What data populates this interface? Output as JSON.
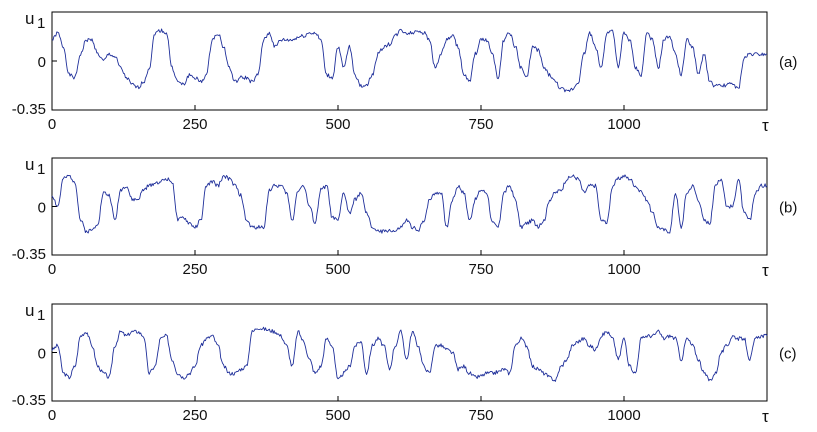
{
  "chart_data": [
    {
      "type": "line",
      "panel_label": "(a)",
      "ylabel": "u",
      "ylabel_subscript": "1",
      "xlabel": "τ",
      "xlim": [
        0,
        1250
      ],
      "ylim": [
        -0.35,
        0.35
      ],
      "x_ticks": [
        0,
        250,
        500,
        750,
        1000
      ],
      "x_tick_labels": [
        "0",
        "250",
        "500",
        "750",
        "1000"
      ],
      "y_tick_labels": [
        "0",
        "-0.35"
      ],
      "line_color": "#1f2f9a",
      "series": [
        {
          "x": [
            0,
            10,
            20,
            30,
            40,
            50,
            60,
            70,
            80,
            90,
            100,
            110,
            120,
            130,
            140,
            150,
            160,
            170,
            180,
            190,
            200,
            210,
            220,
            230,
            240,
            250,
            260,
            270,
            280,
            290,
            300,
            310,
            320,
            330,
            340,
            350,
            360,
            370,
            380,
            390,
            400,
            410,
            420,
            430,
            440,
            450,
            460,
            470,
            480,
            490,
            500,
            510,
            520,
            530,
            540,
            550,
            560,
            570,
            580,
            590,
            600,
            610,
            620,
            630,
            640,
            650,
            660,
            670,
            680,
            690,
            700,
            710,
            720,
            730,
            740,
            750,
            760,
            770,
            780,
            790,
            800,
            810,
            820,
            830,
            840,
            850,
            860,
            870,
            880,
            890,
            900,
            910,
            920,
            930,
            940,
            950,
            960,
            970,
            980,
            990,
            1000,
            1010,
            1020,
            1030,
            1040,
            1050,
            1060,
            1070,
            1080,
            1090,
            1100,
            1110,
            1120,
            1130,
            1140,
            1150,
            1160,
            1170,
            1180,
            1190,
            1200,
            1210,
            1220,
            1230,
            1240,
            1250
          ],
          "y": [
            0.15,
            0.2,
            0.1,
            -0.1,
            -0.12,
            0.05,
            0.15,
            0.15,
            0.05,
            0.0,
            0.05,
            0.03,
            -0.05,
            -0.12,
            -0.17,
            -0.19,
            -0.15,
            -0.05,
            0.2,
            0.22,
            0.2,
            -0.05,
            -0.15,
            -0.17,
            -0.1,
            -0.12,
            -0.15,
            -0.1,
            0.15,
            0.2,
            0.1,
            -0.05,
            -0.15,
            -0.12,
            -0.12,
            -0.15,
            -0.1,
            0.15,
            0.2,
            0.1,
            0.15,
            0.15,
            0.15,
            0.17,
            0.18,
            0.2,
            0.2,
            0.15,
            -0.1,
            -0.12,
            0.1,
            -0.05,
            0.1,
            -0.1,
            -0.18,
            -0.17,
            -0.1,
            0.05,
            0.1,
            0.12,
            0.18,
            0.22,
            0.2,
            0.2,
            0.22,
            0.2,
            0.15,
            -0.05,
            0.05,
            0.15,
            0.18,
            0.1,
            -0.1,
            -0.15,
            0.05,
            0.15,
            0.15,
            0.05,
            -0.12,
            0.15,
            0.2,
            0.1,
            -0.05,
            -0.12,
            0.1,
            0.08,
            -0.05,
            -0.1,
            -0.15,
            -0.2,
            -0.22,
            -0.2,
            -0.15,
            0.05,
            0.2,
            0.1,
            -0.05,
            0.2,
            0.22,
            -0.05,
            0.2,
            0.15,
            -0.05,
            -0.1,
            0.2,
            0.15,
            -0.05,
            0.15,
            0.18,
            0.05,
            -0.1,
            0.15,
            0.1,
            -0.1,
            0.05,
            -0.15,
            -0.18,
            -0.18,
            -0.17,
            -0.16,
            -0.2,
            0.02,
            0.05,
            0.05,
            0.05,
            0.05
          ]
        }
      ]
    },
    {
      "type": "line",
      "panel_label": "(b)",
      "ylabel": "u",
      "ylabel_subscript": "1",
      "xlabel": "τ",
      "xlim": [
        0,
        1250
      ],
      "ylim": [
        -0.35,
        0.35
      ],
      "x_ticks": [
        0,
        250,
        500,
        750,
        1000
      ],
      "x_tick_labels": [
        "0",
        "250",
        "500",
        "750",
        "1000"
      ],
      "y_tick_labels": [
        "0",
        "-0.35"
      ],
      "line_color": "#1f2f9a",
      "series": [
        {
          "x": [
            0,
            10,
            20,
            30,
            40,
            50,
            60,
            70,
            80,
            90,
            100,
            110,
            120,
            130,
            140,
            150,
            160,
            170,
            180,
            190,
            200,
            210,
            220,
            230,
            240,
            250,
            260,
            270,
            280,
            290,
            300,
            310,
            320,
            330,
            340,
            350,
            360,
            370,
            380,
            390,
            400,
            410,
            420,
            430,
            440,
            450,
            460,
            470,
            480,
            490,
            500,
            510,
            520,
            530,
            540,
            550,
            560,
            570,
            580,
            590,
            600,
            610,
            620,
            630,
            640,
            650,
            660,
            670,
            680,
            690,
            700,
            710,
            720,
            730,
            740,
            750,
            760,
            770,
            780,
            790,
            800,
            810,
            820,
            830,
            840,
            850,
            860,
            870,
            880,
            890,
            900,
            910,
            920,
            930,
            940,
            950,
            960,
            970,
            980,
            990,
            1000,
            1010,
            1020,
            1030,
            1040,
            1050,
            1060,
            1070,
            1080,
            1090,
            1100,
            1110,
            1120,
            1130,
            1140,
            1150,
            1160,
            1170,
            1180,
            1190,
            1200,
            1210,
            1220,
            1230,
            1240,
            1250
          ],
          "y": [
            0.08,
            0.0,
            0.2,
            0.22,
            0.18,
            -0.1,
            -0.18,
            -0.17,
            -0.12,
            0.1,
            0.08,
            -0.1,
            0.12,
            0.15,
            0.05,
            0.05,
            0.12,
            0.15,
            0.17,
            0.18,
            0.2,
            0.18,
            -0.1,
            -0.08,
            -0.12,
            -0.15,
            -0.1,
            0.15,
            0.18,
            0.15,
            0.22,
            0.2,
            0.15,
            0.08,
            -0.1,
            -0.15,
            -0.15,
            -0.15,
            0.12,
            0.15,
            0.15,
            0.1,
            -0.1,
            0.12,
            0.15,
            0.0,
            -0.12,
            0.12,
            0.15,
            -0.08,
            -0.1,
            0.1,
            -0.05,
            0.05,
            0.1,
            -0.05,
            -0.15,
            -0.18,
            -0.18,
            -0.17,
            -0.18,
            -0.15,
            -0.1,
            -0.15,
            -0.18,
            -0.1,
            0.05,
            0.1,
            0.1,
            -0.15,
            0.05,
            0.15,
            0.1,
            -0.1,
            0.05,
            0.12,
            0.1,
            -0.12,
            -0.15,
            0.1,
            0.15,
            0.05,
            -0.15,
            -0.12,
            -0.1,
            -0.15,
            -0.1,
            0.05,
            0.1,
            0.12,
            0.2,
            0.22,
            0.2,
            0.1,
            0.15,
            0.15,
            -0.1,
            -0.12,
            0.15,
            0.2,
            0.22,
            0.2,
            0.15,
            0.1,
            0.05,
            -0.05,
            -0.15,
            -0.17,
            -0.18,
            0.1,
            -0.15,
            0.1,
            0.15,
            0.05,
            -0.1,
            -0.12,
            0.15,
            0.2,
            0.0,
            0.0,
            0.2,
            -0.05,
            -0.1,
            0.1,
            0.15,
            0.15
          ]
        }
      ]
    },
    {
      "type": "line",
      "panel_label": "(c)",
      "ylabel": "u",
      "ylabel_subscript": "1",
      "xlabel": "τ",
      "xlim": [
        0,
        1250
      ],
      "ylim": [
        -0.35,
        0.35
      ],
      "x_ticks": [
        0,
        250,
        500,
        750,
        1000
      ],
      "x_tick_labels": [
        "0",
        "250",
        "500",
        "750",
        "1000"
      ],
      "y_tick_labels": [
        "0",
        "-0.35"
      ],
      "line_color": "#1f2f9a",
      "series": [
        {
          "x": [
            0,
            10,
            20,
            30,
            40,
            50,
            60,
            70,
            80,
            90,
            100,
            110,
            120,
            130,
            140,
            150,
            160,
            170,
            180,
            190,
            200,
            210,
            220,
            230,
            240,
            250,
            260,
            270,
            280,
            290,
            300,
            310,
            320,
            330,
            340,
            350,
            360,
            370,
            380,
            390,
            400,
            410,
            420,
            430,
            440,
            450,
            460,
            470,
            480,
            490,
            500,
            510,
            520,
            530,
            540,
            550,
            560,
            570,
            580,
            590,
            600,
            610,
            620,
            630,
            640,
            650,
            660,
            670,
            680,
            690,
            700,
            710,
            720,
            730,
            740,
            750,
            760,
            770,
            780,
            790,
            800,
            810,
            820,
            830,
            840,
            850,
            860,
            870,
            880,
            890,
            900,
            910,
            920,
            930,
            940,
            950,
            960,
            970,
            980,
            990,
            1000,
            1010,
            1020,
            1030,
            1040,
            1050,
            1060,
            1070,
            1080,
            1090,
            1100,
            1110,
            1120,
            1130,
            1140,
            1150,
            1160,
            1170,
            1180,
            1190,
            1200,
            1210,
            1220,
            1230,
            1240,
            1250
          ],
          "y": [
            0.02,
            0.05,
            -0.15,
            -0.18,
            -0.1,
            0.12,
            0.15,
            0.05,
            -0.1,
            -0.15,
            -0.18,
            0.05,
            0.15,
            0.12,
            0.15,
            0.15,
            0.12,
            -0.15,
            -0.1,
            0.1,
            0.12,
            -0.05,
            -0.15,
            -0.18,
            -0.15,
            -0.1,
            0.05,
            0.1,
            0.12,
            0.05,
            -0.1,
            -0.15,
            -0.15,
            -0.12,
            -0.1,
            0.15,
            0.18,
            0.17,
            0.16,
            0.15,
            0.12,
            0.05,
            -0.1,
            0.15,
            0.08,
            -0.05,
            -0.15,
            -0.1,
            0.1,
            0.05,
            -0.2,
            -0.15,
            -0.1,
            0.05,
            0.08,
            -0.15,
            0.05,
            0.1,
            0.05,
            -0.12,
            0.05,
            0.15,
            -0.05,
            0.15,
            0.05,
            -0.1,
            -0.15,
            0.05,
            0.05,
            0.02,
            0.0,
            -0.12,
            -0.1,
            -0.15,
            -0.18,
            -0.17,
            -0.15,
            -0.15,
            -0.14,
            -0.12,
            -0.15,
            0.05,
            0.1,
            0.05,
            -0.1,
            -0.12,
            -0.15,
            -0.18,
            -0.2,
            -0.1,
            -0.05,
            0.05,
            0.08,
            0.1,
            0.05,
            0.02,
            0.12,
            0.15,
            0.1,
            -0.05,
            0.1,
            -0.1,
            -0.15,
            0.1,
            0.12,
            0.12,
            0.15,
            0.1,
            0.12,
            0.1,
            -0.05,
            0.1,
            0.05,
            -0.05,
            -0.15,
            -0.2,
            -0.15,
            0.0,
            0.05,
            0.12,
            0.1,
            0.1,
            -0.05,
            0.1,
            0.12,
            0.12
          ]
        }
      ]
    }
  ]
}
